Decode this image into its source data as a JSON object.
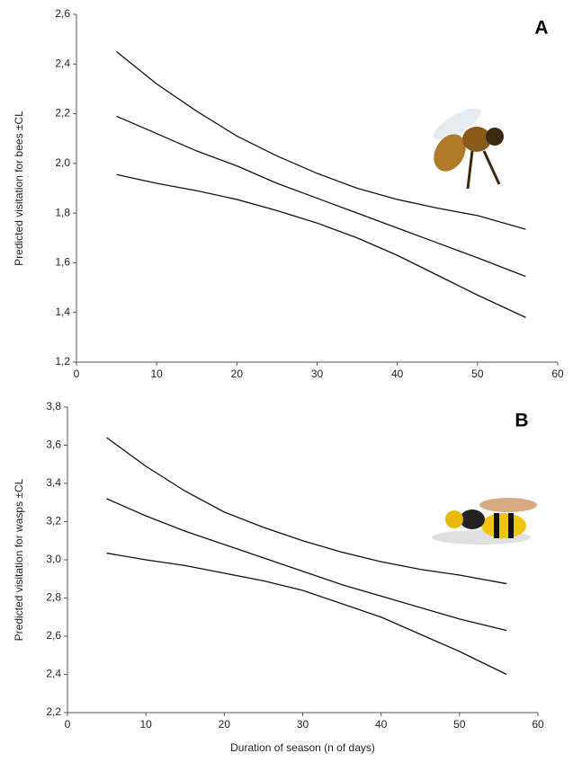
{
  "chart_data": [
    {
      "type": "line",
      "panel_label": "A",
      "ylabel": "Predicted visitation for bees  ±CL",
      "x": [
        5,
        10,
        15,
        20,
        25,
        30,
        35,
        40,
        45,
        50,
        56
      ],
      "series": [
        {
          "color": "#111111",
          "values": [
            2.45,
            2.32,
            2.21,
            2.11,
            2.03,
            1.96,
            1.9,
            1.855,
            1.82,
            1.79,
            1.735
          ]
        },
        {
          "color": "#111111",
          "values": [
            2.19,
            2.12,
            2.05,
            1.99,
            1.92,
            1.86,
            1.8,
            1.74,
            1.68,
            1.62,
            1.545
          ]
        },
        {
          "color": "#111111",
          "values": [
            1.955,
            1.92,
            1.89,
            1.855,
            1.81,
            1.76,
            1.7,
            1.63,
            1.55,
            1.47,
            1.38
          ]
        }
      ],
      "xlim": [
        0,
        60
      ],
      "xticks": [
        0,
        10,
        20,
        30,
        40,
        50,
        60
      ],
      "ylim": [
        1.2,
        2.6
      ],
      "yticks": [
        {
          "value": 1.2,
          "label": "1,2"
        },
        {
          "value": 1.4,
          "label": "1,4"
        },
        {
          "value": 1.6,
          "label": "1,6"
        },
        {
          "value": 1.8,
          "label": "1,8"
        },
        {
          "value": 2.0,
          "label": "2,0"
        },
        {
          "value": 2.2,
          "label": "2,2"
        },
        {
          "value": 2.4,
          "label": "2,4"
        },
        {
          "value": 2.6,
          "label": "2,6"
        }
      ],
      "grid": false
    },
    {
      "type": "line",
      "panel_label": "B",
      "ylabel": "Predicted visitation for wasps ±CL",
      "xlabel": "Duration of season (n of days)",
      "x": [
        5,
        10,
        15,
        20,
        25,
        30,
        35,
        40,
        45,
        50,
        56
      ],
      "series": [
        {
          "color": "#111111",
          "values": [
            3.64,
            3.49,
            3.36,
            3.25,
            3.17,
            3.1,
            3.04,
            2.99,
            2.95,
            2.92,
            2.875
          ]
        },
        {
          "color": "#111111",
          "values": [
            3.32,
            3.23,
            3.15,
            3.08,
            3.01,
            2.94,
            2.87,
            2.81,
            2.75,
            2.69,
            2.63
          ]
        },
        {
          "color": "#111111",
          "values": [
            3.035,
            3.0,
            2.97,
            2.93,
            2.89,
            2.84,
            2.77,
            2.7,
            2.61,
            2.52,
            2.4
          ]
        }
      ],
      "xlim": [
        0,
        60
      ],
      "xticks": [
        0,
        10,
        20,
        30,
        40,
        50,
        60
      ],
      "ylim": [
        2.2,
        3.8
      ],
      "yticks": [
        {
          "value": 2.2,
          "label": "2,2"
        },
        {
          "value": 2.4,
          "label": "2,4"
        },
        {
          "value": 2.6,
          "label": "2,6"
        },
        {
          "value": 2.8,
          "label": "2,8"
        },
        {
          "value": 3.0,
          "label": "3,0"
        },
        {
          "value": 3.2,
          "label": "3,2"
        },
        {
          "value": 3.4,
          "label": "3,4"
        },
        {
          "value": 3.6,
          "label": "3,6"
        },
        {
          "value": 3.8,
          "label": "3,8"
        }
      ],
      "grid": false
    }
  ]
}
